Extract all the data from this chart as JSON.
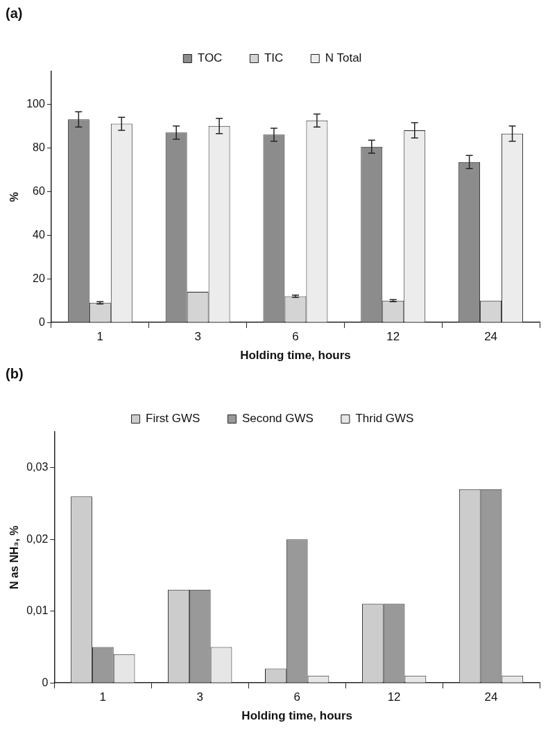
{
  "chart_data": [
    {
      "type": "bar",
      "title": "(a)",
      "xlabel": "Holding time, hours",
      "ylabel": "%",
      "categories": [
        "1",
        "3",
        "6",
        "12",
        "24"
      ],
      "ylim": [
        0,
        115
      ],
      "yticks": [
        0,
        20,
        40,
        60,
        80,
        100
      ],
      "legend": "top",
      "series": [
        {
          "name": "TOC",
          "color": "#8c8c8c",
          "values": [
            93,
            87,
            86,
            80.5,
            73.5
          ],
          "errors": [
            3.5,
            3,
            3,
            3,
            3
          ]
        },
        {
          "name": "TIC",
          "color": "#d4d4d4",
          "values": [
            9,
            14,
            12,
            10,
            10
          ],
          "errors": [
            0.5,
            null,
            0.5,
            0.5,
            null
          ]
        },
        {
          "name": "N Total",
          "color": "#ececec",
          "values": [
            91,
            90,
            92.5,
            88,
            86.5
          ],
          "errors": [
            3,
            3.5,
            3,
            3.5,
            3.5
          ]
        }
      ]
    },
    {
      "type": "bar",
      "title": "(b)",
      "xlabel": "Holding time, hours",
      "ylabel": "N as NH₃, %",
      "categories": [
        "1",
        "3",
        "6",
        "12",
        "24"
      ],
      "ylim": [
        0,
        0.035
      ],
      "yticks": [
        0,
        {
          "value": 0.01,
          "label": "0,01"
        },
        {
          "value": 0.02,
          "label": "0,02"
        },
        {
          "value": 0.03,
          "label": "0,03"
        }
      ],
      "legend": "top",
      "series": [
        {
          "name": "First GWS",
          "color": "#cccccc",
          "values": [
            0.026,
            0.013,
            0.002,
            0.011,
            0.027
          ]
        },
        {
          "name": "Second GWS",
          "color": "#999999",
          "values": [
            0.005,
            0.013,
            0.02,
            0.011,
            0.027
          ]
        },
        {
          "name": "Thrid GWS",
          "color": "#e6e6e6",
          "values": [
            0.004,
            0.005,
            0.001,
            0.001,
            0.001
          ]
        }
      ]
    }
  ]
}
